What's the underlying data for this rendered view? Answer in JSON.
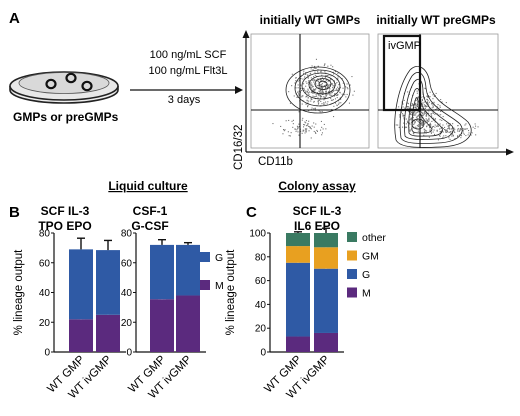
{
  "panel_a": {
    "letter": "A",
    "dish_label": "GMPs or preGMPs",
    "condition_lines": [
      "100 ng/mL SCF",
      "100 ng/mL Flt3L"
    ],
    "duration": "3 days",
    "plot1_title": "initially WT GMPs",
    "plot2_title": "initially WT preGMPs",
    "gate_label": "ivGMP",
    "y_axis_label": "CD16/32",
    "x_axis_label": "CD11b"
  },
  "panel_b": {
    "letter": "B",
    "header": "Liquid culture",
    "chart1_title_lines": [
      "SCF IL-3",
      "TPO EPO"
    ],
    "chart2_title_lines": [
      "CSF-1",
      "G-CSF"
    ]
  },
  "panel_c": {
    "letter": "C",
    "header": "Colony assay",
    "title_lines": [
      "SCF IL-3",
      "IL6 EPO"
    ]
  },
  "colors": {
    "M": "#5b2a7e",
    "G": "#2f5aa5",
    "GM": "#e8a020",
    "other": "#3a7a62",
    "axis": "#111111"
  },
  "chart_data": [
    {
      "type": "bar",
      "stacked": true,
      "title": "SCF IL-3 TPO EPO",
      "ylabel": "% lineage output",
      "ylim": [
        0,
        80
      ],
      "yticks": [
        0,
        20,
        40,
        60,
        80
      ],
      "categories": [
        "WT GMP",
        "WT ivGMP"
      ],
      "series": [
        {
          "name": "M",
          "values": [
            22,
            25
          ],
          "errors": [
            0.6,
            1.3
          ]
        },
        {
          "name": "G",
          "values": [
            47,
            43.5
          ],
          "errors": [
            7.5,
            6.5
          ]
        }
      ],
      "legend": [
        "G",
        "M"
      ],
      "legend_position": "right"
    },
    {
      "type": "bar",
      "stacked": true,
      "title": "CSF-1 G-CSF",
      "ylabel": "",
      "ylim": [
        0,
        80
      ],
      "yticks": [
        0,
        20,
        40,
        60,
        80
      ],
      "categories": [
        "WT GMP",
        "WT ivGMP"
      ],
      "series": [
        {
          "name": "M",
          "values": [
            35.5,
            38
          ],
          "errors": [
            0.5,
            2.5
          ]
        },
        {
          "name": "G",
          "values": [
            36.5,
            34
          ],
          "errors": [
            3.5,
            1.5
          ]
        }
      ],
      "legend": [
        "G",
        "M"
      ],
      "legend_position": "right"
    },
    {
      "type": "bar",
      "stacked": true,
      "title": "SCF IL-3 IL6 EPO",
      "ylabel": "% lineage output",
      "ylim": [
        0,
        100
      ],
      "yticks": [
        0,
        20,
        40,
        60,
        80,
        100
      ],
      "categories": [
        "WT GMP",
        "WT ivGMP"
      ],
      "series": [
        {
          "name": "M",
          "values": [
            13,
            16
          ],
          "errors": [
            1.5,
            4
          ]
        },
        {
          "name": "G",
          "values": [
            62,
            54
          ],
          "errors": [
            2,
            4
          ]
        },
        {
          "name": "GM",
          "values": [
            14,
            18
          ],
          "errors": [
            1,
            4
          ]
        },
        {
          "name": "other",
          "values": [
            11,
            12
          ],
          "errors": [
            1,
            4
          ]
        }
      ],
      "legend": [
        "other",
        "GM",
        "G",
        "M"
      ],
      "legend_position": "right"
    }
  ]
}
